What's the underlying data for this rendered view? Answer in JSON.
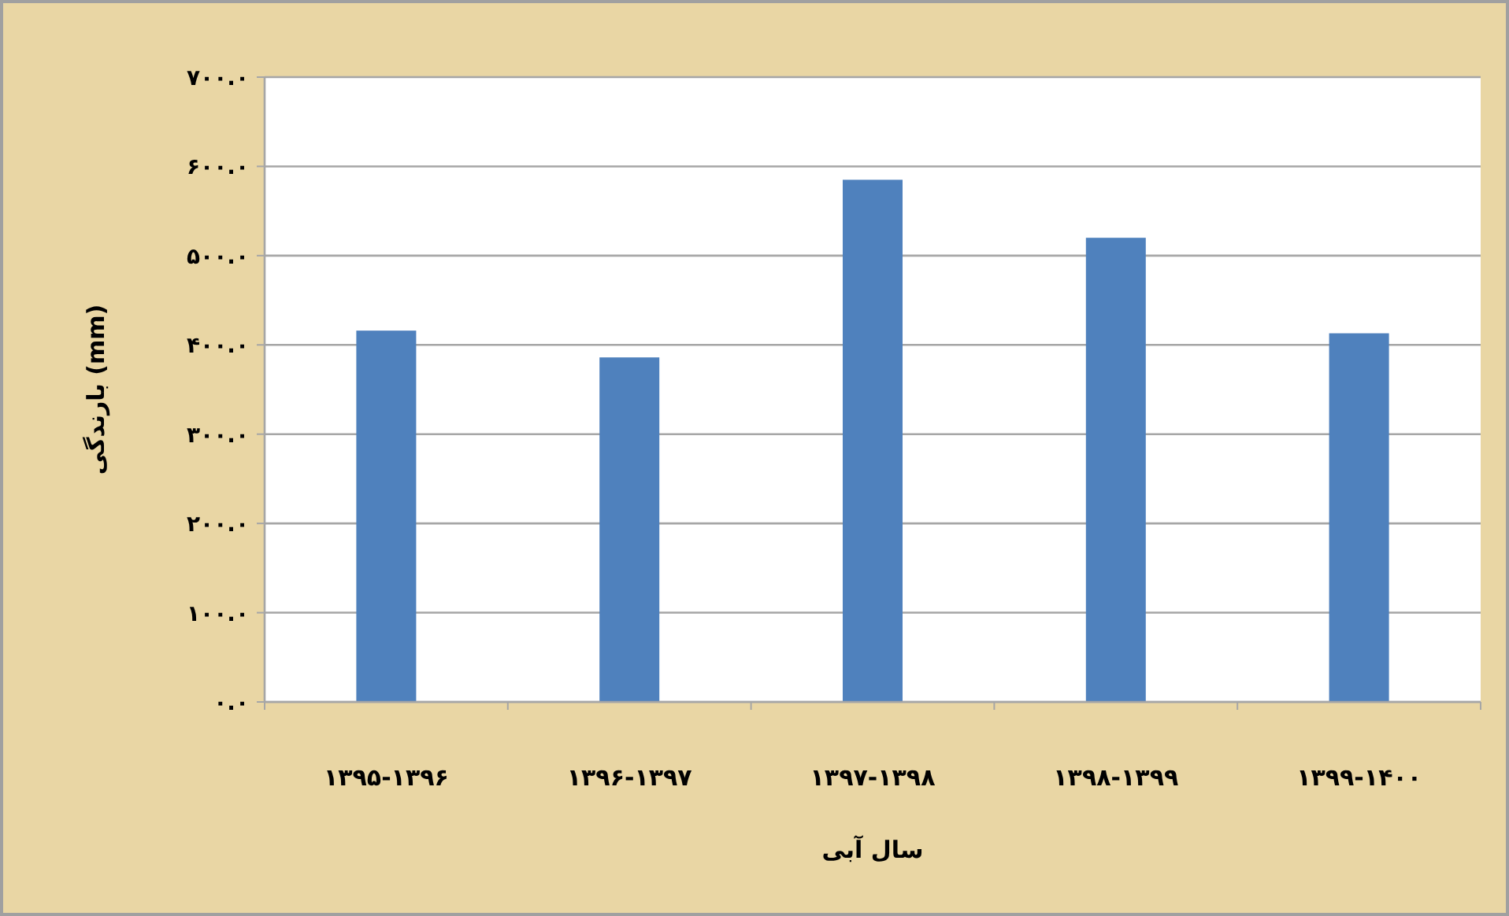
{
  "chart_data": {
    "type": "bar",
    "xlabel": "سال آبی",
    "ylabel": "بارندگی (mm)",
    "categories": [
      "۱۳۹۵-۱۳۹۶",
      "۱۳۹۶-۱۳۹۷",
      "۱۳۹۷-۱۳۹۸",
      "۱۳۹۸-۱۳۹۹",
      "۱۳۹۹-۱۴۰۰"
    ],
    "values": [
      416,
      386,
      585,
      520,
      413
    ],
    "color": "#4f81bd",
    "ylim": [
      0,
      700
    ],
    "yticks": [
      {
        "value": 0,
        "label": "۰.۰"
      },
      {
        "value": 100,
        "label": "۱۰۰.۰"
      },
      {
        "value": 200,
        "label": "۲۰۰.۰"
      },
      {
        "value": 300,
        "label": "۳۰۰.۰"
      },
      {
        "value": 400,
        "label": "۴۰۰.۰"
      },
      {
        "value": 500,
        "label": "۵۰۰.۰"
      },
      {
        "value": 600,
        "label": "۶۰۰.۰"
      },
      {
        "value": 700,
        "label": "۷۰۰.۰"
      }
    ],
    "grid": "y"
  }
}
